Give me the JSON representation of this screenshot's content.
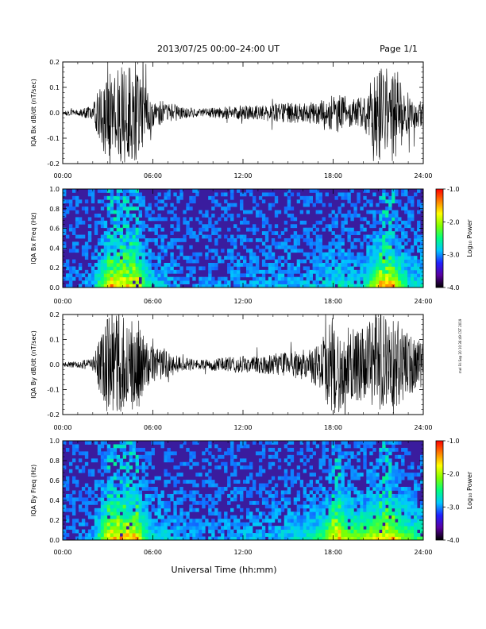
{
  "header": {
    "title": "2013/07/25  00:00–24:00 UT",
    "page": "Page 1/1"
  },
  "side_note": "mel Fri Sep 20 10:36:49 CST 2019",
  "colors": {
    "trace": "#000000",
    "spectrogram_background": "#3a1c9e",
    "colorbar": [
      "#000000",
      "#5a00a0",
      "#2020ff",
      "#00c8ff",
      "#00ff80",
      "#80ff00",
      "#ffff00",
      "#ff8000",
      "#ff0000"
    ]
  },
  "chart_data": [
    {
      "type": "line",
      "id": "bx_dbdt",
      "ylabel": "IQA Bx dB/dt (nT/sec)",
      "ylim": [
        -0.2,
        0.2
      ],
      "yticks": [
        "0.2",
        "0.1",
        "0.0",
        "-0.1",
        "-0.2"
      ],
      "xlim": [
        0,
        24
      ],
      "xticks": [
        "00:00",
        "06:00",
        "12:00",
        "18:00",
        "24:00"
      ],
      "envelope_time_hours": [
        0,
        1,
        2,
        3,
        3.5,
        4,
        4.5,
        5,
        5.5,
        6,
        7,
        8,
        9,
        10,
        11,
        12,
        13,
        14,
        15,
        16,
        17,
        18,
        18.5,
        19,
        20,
        21,
        22,
        23,
        24
      ],
      "envelope_amplitude": [
        0.01,
        0.012,
        0.03,
        0.2,
        0.2,
        0.2,
        0.2,
        0.2,
        0.1,
        0.06,
        0.04,
        0.025,
        0.015,
        0.02,
        0.025,
        0.03,
        0.03,
        0.035,
        0.04,
        0.04,
        0.045,
        0.07,
        0.08,
        0.06,
        0.06,
        0.2,
        0.2,
        0.08,
        0.06
      ]
    },
    {
      "type": "heatmap",
      "id": "bx_spectrogram",
      "ylabel": "IQA Bx Freq (Hz)",
      "ylim": [
        0.0,
        1.0
      ],
      "yticks": [
        "1.0",
        "0.8",
        "0.6",
        "0.4",
        "0.2",
        "0.0"
      ],
      "xlim": [
        0,
        24
      ],
      "xticks": [
        "00:00",
        "06:00",
        "12:00",
        "18:00",
        "24:00"
      ],
      "colorbar": {
        "label": "Log₁₀ Power",
        "range": [
          -4.0,
          -1.0
        ],
        "ticks": [
          "-1.0",
          "-2.0",
          "-3.0",
          "-4.0"
        ]
      }
    },
    {
      "type": "line",
      "id": "by_dbdt",
      "ylabel": "IQA By dB/dt (nT/sec)",
      "ylim": [
        -0.2,
        0.2
      ],
      "yticks": [
        "0.2",
        "0.1",
        "0.0",
        "-0.1",
        "-0.2"
      ],
      "xlim": [
        0,
        24
      ],
      "xticks": [
        "00:00",
        "06:00",
        "12:00",
        "18:00",
        "24:00"
      ],
      "envelope_time_hours": [
        0,
        1,
        2,
        3,
        3.5,
        4,
        4.5,
        5,
        5.5,
        6,
        7,
        8,
        9,
        10,
        11,
        12,
        13,
        14,
        15,
        16,
        17,
        18,
        18.5,
        19,
        20,
        21,
        22,
        23,
        24
      ],
      "envelope_amplitude": [
        0.01,
        0.012,
        0.03,
        0.2,
        0.2,
        0.2,
        0.2,
        0.2,
        0.1,
        0.07,
        0.05,
        0.03,
        0.02,
        0.025,
        0.03,
        0.035,
        0.035,
        0.04,
        0.05,
        0.06,
        0.09,
        0.2,
        0.2,
        0.15,
        0.15,
        0.2,
        0.2,
        0.12,
        0.1
      ]
    },
    {
      "type": "heatmap",
      "id": "by_spectrogram",
      "ylabel": "IQA By Freq (Hz)",
      "ylim": [
        0.0,
        1.0
      ],
      "yticks": [
        "1.0",
        "0.8",
        "0.6",
        "0.4",
        "0.2",
        "0.0"
      ],
      "xlim": [
        0,
        24
      ],
      "xticks": [
        "00:00",
        "06:00",
        "12:00",
        "18:00",
        "24:00"
      ],
      "colorbar": {
        "label": "Log₁₀ Power",
        "range": [
          -4.0,
          -1.0
        ],
        "ticks": [
          "-1.0",
          "-2.0",
          "-3.0",
          "-4.0"
        ]
      }
    }
  ],
  "xlabel": "Universal Time (hh:mm)"
}
